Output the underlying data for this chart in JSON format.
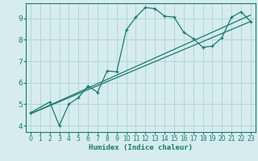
{
  "xlabel": "Humidex (Indice chaleur)",
  "bg_color": "#d6ecee",
  "grid_color": "#aed4d4",
  "line_color": "#1a7a6e",
  "xlim": [
    -0.5,
    23.5
  ],
  "ylim": [
    3.7,
    9.7
  ],
  "xticks": [
    0,
    1,
    2,
    3,
    4,
    5,
    6,
    7,
    8,
    9,
    10,
    11,
    12,
    13,
    14,
    15,
    16,
    17,
    18,
    19,
    20,
    21,
    22,
    23
  ],
  "yticks": [
    4,
    5,
    6,
    7,
    8,
    9
  ],
  "curve1_x": [
    0,
    2,
    3,
    4,
    5,
    6,
    7,
    8,
    9,
    10,
    11,
    12,
    13,
    14,
    15,
    16,
    17,
    18,
    19,
    20,
    21,
    22,
    23
  ],
  "curve1_y": [
    4.6,
    5.1,
    4.0,
    5.0,
    5.3,
    5.85,
    5.55,
    6.55,
    6.5,
    8.45,
    9.05,
    9.5,
    9.45,
    9.1,
    9.05,
    8.35,
    8.05,
    7.65,
    7.7,
    8.1,
    9.05,
    9.3,
    8.85
  ],
  "line2_x": [
    0,
    23
  ],
  "line2_y": [
    4.55,
    8.85
  ],
  "line3_x": [
    0,
    23
  ],
  "line3_y": [
    4.55,
    9.15
  ]
}
